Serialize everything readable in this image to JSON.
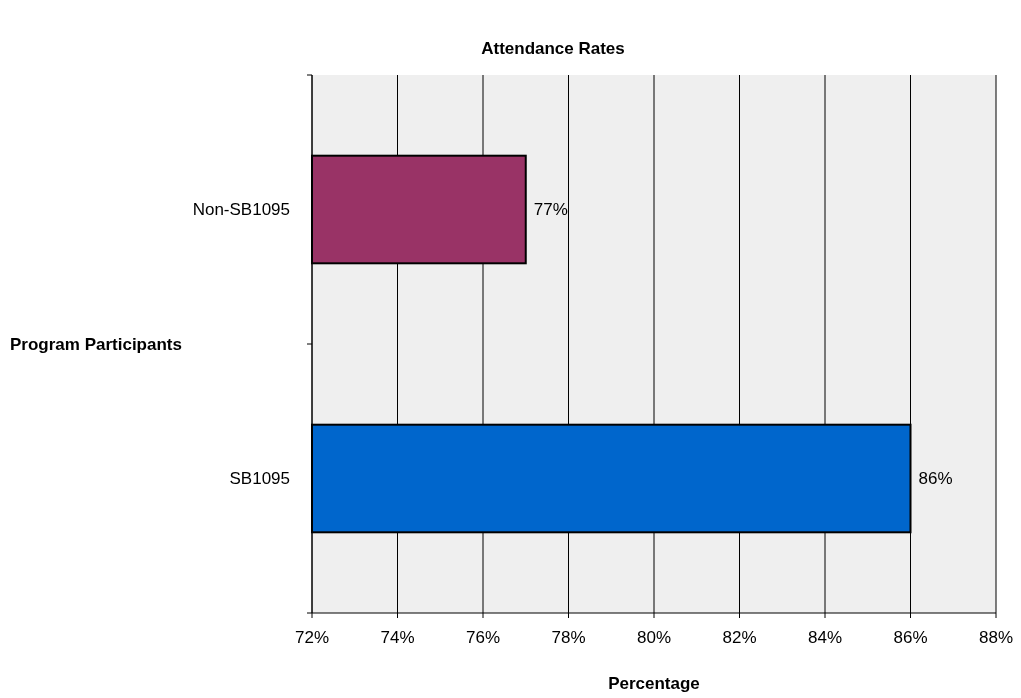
{
  "chart_data": {
    "type": "bar",
    "orientation": "horizontal",
    "title": "Attendance Rates",
    "xlabel": "Percentage",
    "ylabel": "Program Participants",
    "categories": [
      "Non-SB1095",
      "SB1095"
    ],
    "values": [
      77,
      86
    ],
    "colors": [
      "#993366",
      "#0066cc"
    ],
    "value_labels": [
      "77%",
      "86%"
    ],
    "xlim": [
      72,
      88
    ],
    "xticks": [
      {
        "value": 72,
        "label": "72%"
      },
      {
        "value": 74,
        "label": "74%"
      },
      {
        "value": 76,
        "label": "76%"
      },
      {
        "value": 78,
        "label": "78%"
      },
      {
        "value": 80,
        "label": "80%"
      },
      {
        "value": 82,
        "label": "82%"
      },
      {
        "value": 84,
        "label": "84%"
      },
      {
        "value": 86,
        "label": "86%"
      },
      {
        "value": 88,
        "label": "88%"
      }
    ],
    "grid": "x"
  }
}
